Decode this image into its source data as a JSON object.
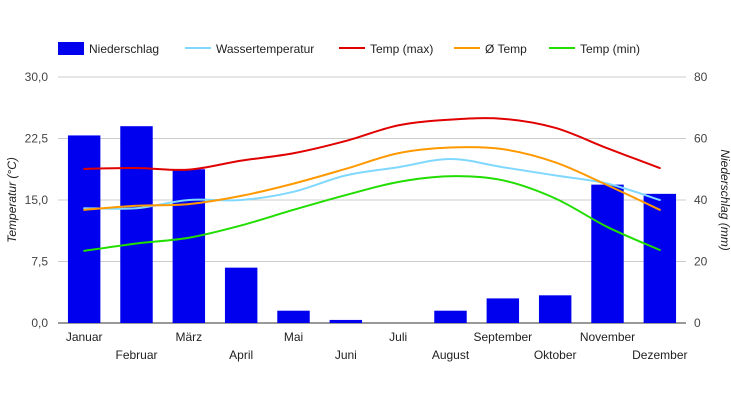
{
  "chart_data": {
    "type": "bar",
    "categories": [
      "Januar",
      "Februar",
      "März",
      "April",
      "Mai",
      "Juni",
      "Juli",
      "August",
      "September",
      "Oktober",
      "November",
      "Dezember"
    ],
    "bar_series": {
      "name": "Niederschlag",
      "color": "#0000ee",
      "axis": "right",
      "values": [
        61,
        64,
        50,
        18,
        4,
        1,
        0,
        4,
        8,
        9,
        45,
        42
      ]
    },
    "line_series": [
      {
        "name": "Wassertemperatur",
        "color": "#80d8ff",
        "axis": "left",
        "values": [
          14.0,
          14.0,
          15.0,
          15.0,
          16.0,
          18.0,
          19.0,
          20.0,
          19.0,
          18.0,
          17.0,
          15.0
        ]
      },
      {
        "name": "Temp (max)",
        "color": "#e00000",
        "axis": "left",
        "values": [
          18.8,
          18.9,
          18.7,
          19.8,
          20.7,
          22.2,
          24.1,
          24.8,
          24.9,
          23.8,
          21.3,
          18.9
        ]
      },
      {
        "name": "Ø Temp",
        "color": "#ff9900",
        "axis": "left",
        "values": [
          13.8,
          14.3,
          14.5,
          15.5,
          17.0,
          18.8,
          20.7,
          21.4,
          21.2,
          19.6,
          16.8,
          13.8
        ]
      },
      {
        "name": "Temp (min)",
        "color": "#22dd00",
        "axis": "left",
        "values": [
          8.8,
          9.7,
          10.4,
          11.9,
          13.8,
          15.6,
          17.2,
          17.9,
          17.4,
          15.2,
          11.7,
          8.9
        ]
      }
    ],
    "y_left": {
      "label": "Temperatur (°C)",
      "range": [
        0,
        30
      ],
      "ticks": [
        "0,0",
        "7,5",
        "15,0",
        "22,5",
        "30,0"
      ]
    },
    "y_right": {
      "label": "Niederschlag (mm)",
      "range": [
        0,
        80
      ],
      "ticks": [
        "0",
        "20",
        "40",
        "60",
        "80"
      ]
    },
    "legend_position": "top-left",
    "grid": true
  }
}
